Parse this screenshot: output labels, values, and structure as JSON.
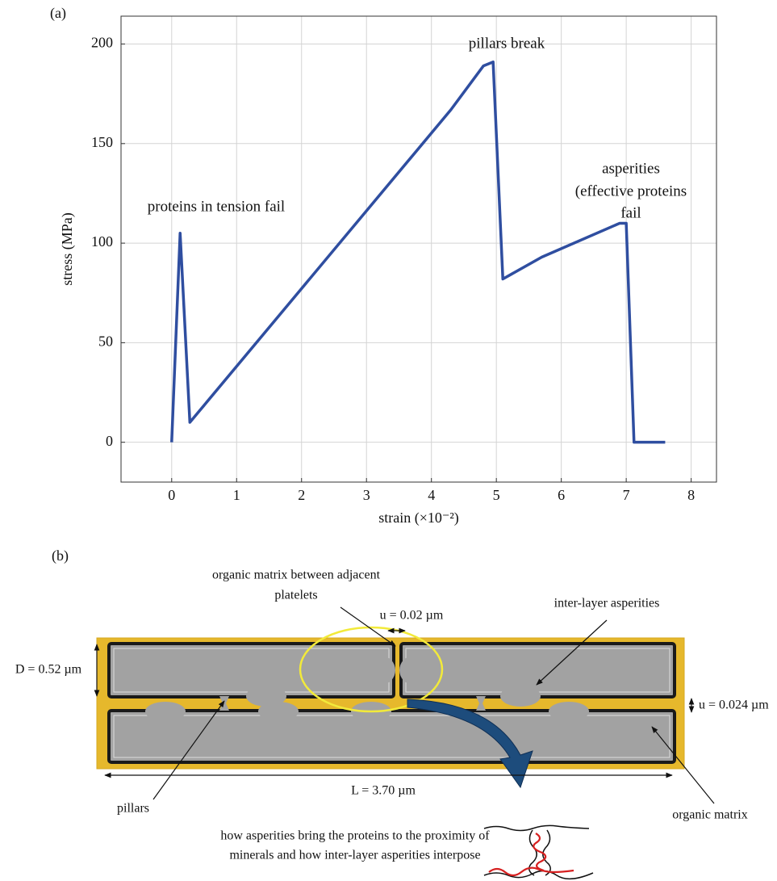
{
  "chart_data": {
    "type": "line",
    "panel_label": "(a)",
    "x": [
      0,
      0.13,
      0.28,
      4.3,
      4.8,
      4.95,
      5.1,
      5.7,
      6.9,
      7.0,
      7.12,
      7.6
    ],
    "values": [
      0,
      105,
      10,
      167,
      189,
      191,
      82,
      93,
      110,
      110,
      0,
      0
    ],
    "color": "#2f4ea0",
    "xlabel": "strain (×10⁻²)",
    "ylabel": "stress (MPa)",
    "xlim": [
      -0.78,
      8.39
    ],
    "ylim": [
      -20,
      214
    ],
    "xticks": [
      0,
      1,
      2,
      3,
      4,
      5,
      6,
      7,
      8
    ],
    "yticks": [
      0,
      50,
      100,
      150,
      200
    ],
    "grid": true,
    "annotations": [
      "proteins in tension fail",
      "pillars break",
      "asperities",
      "(effective proteins",
      "fail"
    ]
  },
  "diagram": {
    "panel_label": "(b)",
    "labels": [
      "organic matrix between adjacent",
      "platelets",
      "u = 0.02 µm",
      "inter-layer asperities",
      "D = 0.52 µm",
      "u = 0.024 µm",
      "L = 3.70 µm",
      "pillars",
      "organic matrix",
      "how asperities bring the proteins to the proximity of",
      "minerals and how inter-layer asperities interpose"
    ]
  }
}
